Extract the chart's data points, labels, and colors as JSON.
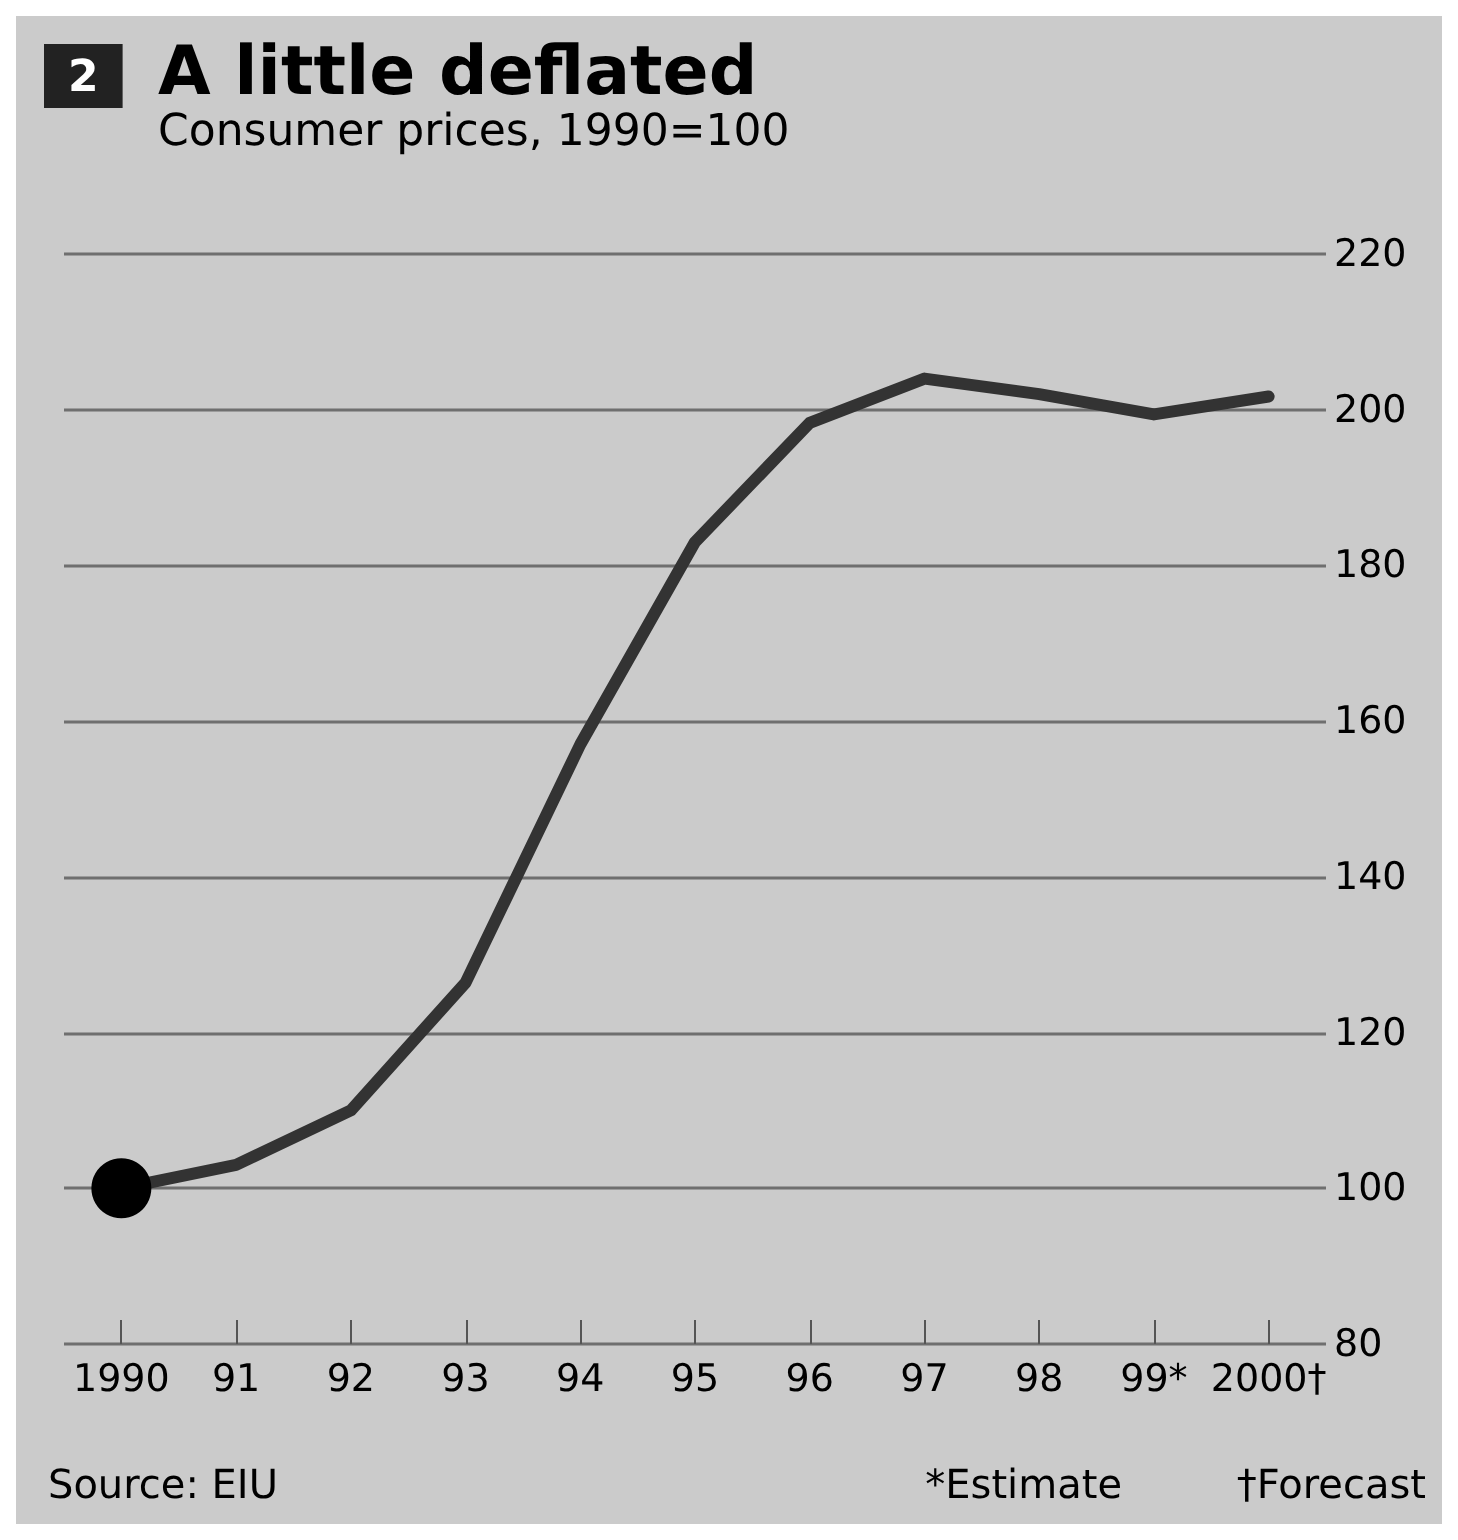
{
  "chart_data": {
    "type": "line",
    "title": "A little deflated",
    "subtitle": "Consumer prices, 1990=100",
    "categories": [
      "1990",
      "91",
      "92",
      "93",
      "94",
      "95",
      "96",
      "97",
      "98",
      "99*",
      "2000†"
    ],
    "series": [
      {
        "color": "#333333",
        "marker": "none",
        "values": [
          100,
          103,
          110,
          126.4,
          157,
          183,
          198.3,
          204,
          202,
          199.4,
          201.7
        ]
      },
      {
        "type": "scatter",
        "color": "#000000",
        "marker": "circle",
        "values": [
          100,
          null,
          null,
          null,
          null,
          null,
          null,
          null,
          null,
          null,
          null
        ]
      }
    ],
    "ylim": [
      80,
      220
    ],
    "yticks": [
      80,
      100,
      120,
      140,
      160,
      180,
      200,
      220
    ],
    "grid": "y",
    "annotations": [
      "2",
      "Source: EIU",
      "*Estimate",
      "†Forecast"
    ]
  }
}
